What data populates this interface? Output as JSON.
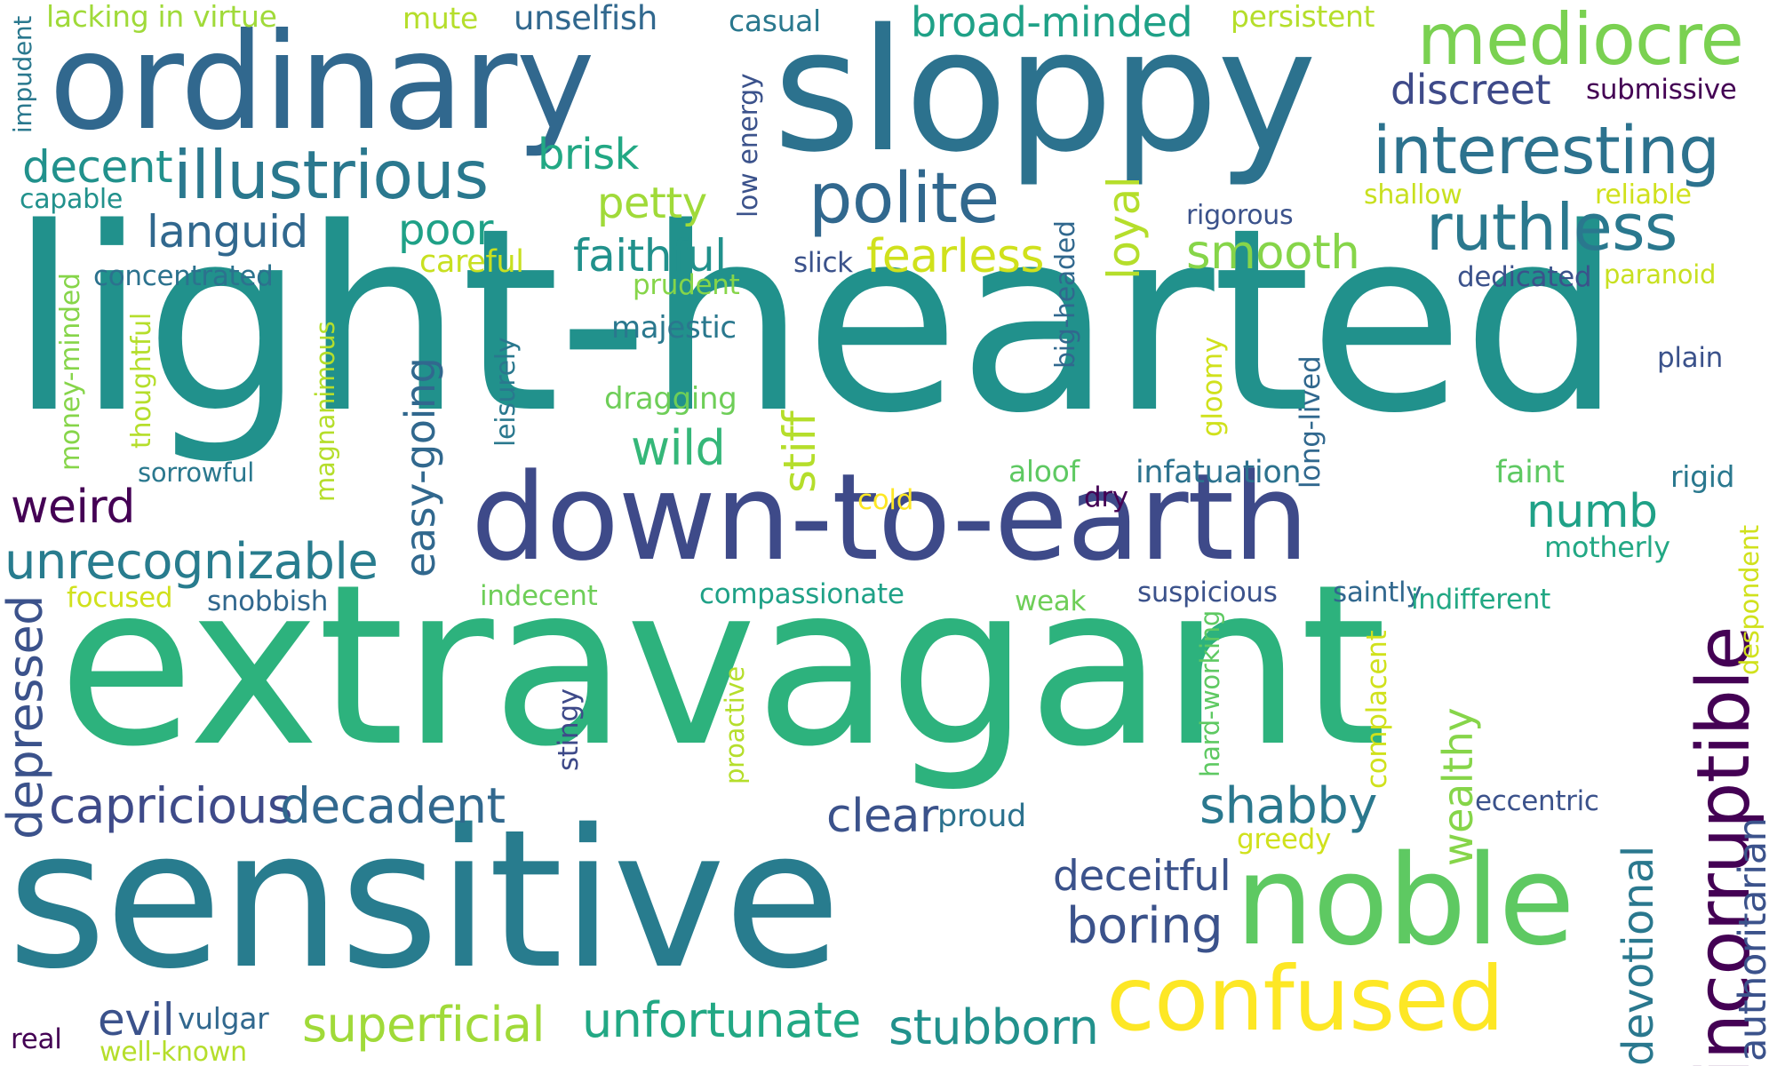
{
  "palette": {
    "dark_purple": "#440154",
    "indigo": "#3b528b",
    "steel_blue": "#31688e",
    "teal_blue": "#2a788e",
    "teal": "#21918c",
    "sea_green": "#1f9e89",
    "green": "#35b779",
    "light_green": "#6ece58",
    "lime": "#b5de2b",
    "yellow": "#fde725"
  },
  "words": [
    {
      "text": "light-hearted",
      "color": "#21918c",
      "orientation": "horizontal"
    },
    {
      "text": "extravagant",
      "color": "#2db27d",
      "orientation": "horizontal"
    },
    {
      "text": "sensitive",
      "color": "#287c8e",
      "orientation": "horizontal"
    },
    {
      "text": "ordinary",
      "color": "#31688e",
      "orientation": "horizontal"
    },
    {
      "text": "sloppy",
      "color": "#2c728e",
      "orientation": "horizontal"
    },
    {
      "text": "down-to-earth",
      "color": "#3e4a89",
      "orientation": "horizontal"
    },
    {
      "text": "noble",
      "color": "#5ec962",
      "orientation": "horizontal"
    },
    {
      "text": "confused",
      "color": "#fde725",
      "orientation": "horizontal"
    },
    {
      "text": "incorruptible",
      "color": "#440154",
      "orientation": "vertical"
    },
    {
      "text": "mediocre",
      "color": "#7ad151",
      "orientation": "horizontal"
    },
    {
      "text": "interesting",
      "color": "#2c728e",
      "orientation": "horizontal"
    },
    {
      "text": "illustrious",
      "color": "#2a788e",
      "orientation": "horizontal"
    },
    {
      "text": "polite",
      "color": "#31688e",
      "orientation": "horizontal"
    },
    {
      "text": "ruthless",
      "color": "#2a788e",
      "orientation": "horizontal"
    },
    {
      "text": "unrecognizable",
      "color": "#287c8e",
      "orientation": "horizontal"
    },
    {
      "text": "depressed",
      "color": "#3b528b",
      "orientation": "vertical"
    },
    {
      "text": "capricious",
      "color": "#3e4a89",
      "orientation": "horizontal"
    },
    {
      "text": "decadent",
      "color": "#31688e",
      "orientation": "horizontal"
    },
    {
      "text": "shabby",
      "color": "#2a788e",
      "orientation": "horizontal"
    },
    {
      "text": "deceitful",
      "color": "#3b528b",
      "orientation": "horizontal"
    },
    {
      "text": "boring",
      "color": "#3b528b",
      "orientation": "horizontal"
    },
    {
      "text": "superficial",
      "color": "#a0da39",
      "orientation": "horizontal"
    },
    {
      "text": "unfortunate",
      "color": "#22a884",
      "orientation": "horizontal"
    },
    {
      "text": "stubborn",
      "color": "#21918c",
      "orientation": "horizontal"
    },
    {
      "text": "devotional",
      "color": "#2a788e",
      "orientation": "vertical"
    },
    {
      "text": "authoritarian",
      "color": "#3b528b",
      "orientation": "vertical"
    },
    {
      "text": "broad-minded",
      "color": "#1fa187",
      "orientation": "horizontal"
    },
    {
      "text": "discreet",
      "color": "#3e4a89",
      "orientation": "horizontal"
    },
    {
      "text": "decent",
      "color": "#21918c",
      "orientation": "horizontal"
    },
    {
      "text": "languid",
      "color": "#31688e",
      "orientation": "horizontal"
    },
    {
      "text": "faithful",
      "color": "#21918c",
      "orientation": "horizontal"
    },
    {
      "text": "fearless",
      "color": "#d0e11c",
      "orientation": "horizontal"
    },
    {
      "text": "smooth",
      "color": "#86d549",
      "orientation": "horizontal"
    },
    {
      "text": "loyal",
      "color": "#b5de2b",
      "orientation": "vertical"
    },
    {
      "text": "weird",
      "color": "#440154",
      "orientation": "horizontal"
    },
    {
      "text": "numb",
      "color": "#1fa187",
      "orientation": "horizontal"
    },
    {
      "text": "easy-going",
      "color": "#31688e",
      "orientation": "vertical"
    },
    {
      "text": "wild",
      "color": "#35b779",
      "orientation": "horizontal"
    },
    {
      "text": "stiff",
      "color": "#b5de2b",
      "orientation": "vertical"
    },
    {
      "text": "clear",
      "color": "#3b528b",
      "orientation": "horizontal"
    },
    {
      "text": "evil",
      "color": "#3b528b",
      "orientation": "horizontal"
    },
    {
      "text": "wealthy",
      "color": "#86d549",
      "orientation": "vertical"
    },
    {
      "text": "brisk",
      "color": "#22a884",
      "orientation": "horizontal"
    },
    {
      "text": "petty",
      "color": "#a0da39",
      "orientation": "horizontal"
    },
    {
      "text": "poor",
      "color": "#1fa187",
      "orientation": "horizontal"
    },
    {
      "text": "unselfish",
      "color": "#31688e",
      "orientation": "horizontal"
    },
    {
      "text": "lacking in virtue",
      "color": "#a0da39",
      "orientation": "horizontal"
    },
    {
      "text": "mute",
      "color": "#b5de2b",
      "orientation": "horizontal"
    },
    {
      "text": "casual",
      "color": "#2a788e",
      "orientation": "horizontal"
    },
    {
      "text": "persistent",
      "color": "#b5de2b",
      "orientation": "horizontal"
    },
    {
      "text": "submissive",
      "color": "#440154",
      "orientation": "horizontal"
    },
    {
      "text": "impudent",
      "color": "#2a788e",
      "orientation": "vertical"
    },
    {
      "text": "capable",
      "color": "#21918c",
      "orientation": "horizontal"
    },
    {
      "text": "concentrated",
      "color": "#2c728e",
      "orientation": "horizontal"
    },
    {
      "text": "careful",
      "color": "#c8e020",
      "orientation": "horizontal"
    },
    {
      "text": "prudent",
      "color": "#86d549",
      "orientation": "horizontal"
    },
    {
      "text": "slick",
      "color": "#3b528b",
      "orientation": "horizontal"
    },
    {
      "text": "low energy",
      "color": "#3b528b",
      "orientation": "vertical"
    },
    {
      "text": "big-headed",
      "color": "#31688e",
      "orientation": "vertical"
    },
    {
      "text": "rigorous",
      "color": "#3b528b",
      "orientation": "horizontal"
    },
    {
      "text": "shallow",
      "color": "#c8e020",
      "orientation": "horizontal"
    },
    {
      "text": "reliable",
      "color": "#d0e11c",
      "orientation": "horizontal"
    },
    {
      "text": "dedicated",
      "color": "#3b528b",
      "orientation": "horizontal"
    },
    {
      "text": "paranoid",
      "color": "#c8e020",
      "orientation": "horizontal"
    },
    {
      "text": "plain",
      "color": "#3b528b",
      "orientation": "horizontal"
    },
    {
      "text": "majestic",
      "color": "#2a788e",
      "orientation": "horizontal"
    },
    {
      "text": "dragging",
      "color": "#6ece58",
      "orientation": "horizontal"
    },
    {
      "text": "money-minded",
      "color": "#86d549",
      "orientation": "vertical"
    },
    {
      "text": "thoughtful",
      "color": "#b5de2b",
      "orientation": "vertical"
    },
    {
      "text": "magnanimous",
      "color": "#b5de2b",
      "orientation": "vertical"
    },
    {
      "text": "leisurely",
      "color": "#2a788e",
      "orientation": "vertical"
    },
    {
      "text": "gloomy",
      "color": "#d0e11c",
      "orientation": "vertical"
    },
    {
      "text": "long-lived",
      "color": "#31688e",
      "orientation": "vertical"
    },
    {
      "text": "sorrowful",
      "color": "#2a788e",
      "orientation": "horizontal"
    },
    {
      "text": "aloof",
      "color": "#5ec962",
      "orientation": "horizontal"
    },
    {
      "text": "infatuation",
      "color": "#2c728e",
      "orientation": "horizontal"
    },
    {
      "text": "faint",
      "color": "#5ec962",
      "orientation": "horizontal"
    },
    {
      "text": "rigid",
      "color": "#2a788e",
      "orientation": "horizontal"
    },
    {
      "text": "cold",
      "color": "#fde725",
      "orientation": "horizontal"
    },
    {
      "text": "dry",
      "color": "#440154",
      "orientation": "horizontal"
    },
    {
      "text": "motherly",
      "color": "#22a884",
      "orientation": "horizontal"
    },
    {
      "text": "despondent",
      "color": "#d0e11c",
      "orientation": "vertical"
    },
    {
      "text": "focused",
      "color": "#d0e11c",
      "orientation": "horizontal"
    },
    {
      "text": "snobbish",
      "color": "#31688e",
      "orientation": "horizontal"
    },
    {
      "text": "indecent",
      "color": "#6ece58",
      "orientation": "horizontal"
    },
    {
      "text": "compassionate",
      "color": "#1fa187",
      "orientation": "horizontal"
    },
    {
      "text": "weak",
      "color": "#6ece58",
      "orientation": "horizontal"
    },
    {
      "text": "suspicious",
      "color": "#3b528b",
      "orientation": "horizontal"
    },
    {
      "text": "saintly",
      "color": "#31688e",
      "orientation": "horizontal"
    },
    {
      "text": "indifferent",
      "color": "#22a884",
      "orientation": "horizontal"
    },
    {
      "text": "stingy",
      "color": "#3e4a89",
      "orientation": "vertical"
    },
    {
      "text": "proactive",
      "color": "#b5de2b",
      "orientation": "vertical"
    },
    {
      "text": "hard-working",
      "color": "#5ec962",
      "orientation": "vertical"
    },
    {
      "text": "complacent",
      "color": "#d0e11c",
      "orientation": "vertical"
    },
    {
      "text": "proud",
      "color": "#2c728e",
      "orientation": "horizontal"
    },
    {
      "text": "eccentric",
      "color": "#3b528b",
      "orientation": "horizontal"
    },
    {
      "text": "greedy",
      "color": "#d0e11c",
      "orientation": "horizontal"
    },
    {
      "text": "vulgar",
      "color": "#31688e",
      "orientation": "horizontal"
    },
    {
      "text": "real",
      "color": "#440154",
      "orientation": "horizontal"
    },
    {
      "text": "well-known",
      "color": "#b5de2b",
      "orientation": "horizontal"
    }
  ]
}
